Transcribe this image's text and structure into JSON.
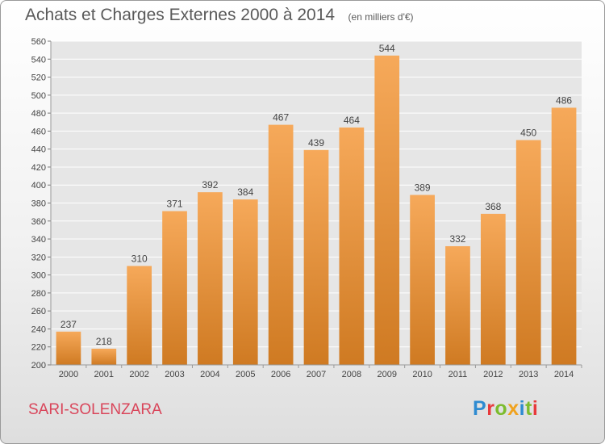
{
  "header": {
    "title": "Achats et Charges Externes 2000 à 2014",
    "subtitle": "(en milliers d'€)"
  },
  "footer": {
    "commune": "SARI-SOLENZARA",
    "logo": "Proxiti"
  },
  "colors": {
    "bar_light": "#f6a95a",
    "bar_dark": "#cf7a22",
    "title": "#5a5a5a",
    "commune": "#d9455a",
    "grid": "#ffffff",
    "plot_bg": "#e6e6e6",
    "logo": [
      "#2e8bd1",
      "#e8393b",
      "#7cbc2e",
      "#f0a21e",
      "#2e8bd1",
      "#7cbc2e",
      "#e8393b"
    ]
  },
  "chart_data": {
    "type": "bar",
    "categories": [
      "2000",
      "2001",
      "2002",
      "2003",
      "2004",
      "2005",
      "2006",
      "2007",
      "2008",
      "2009",
      "2010",
      "2011",
      "2012",
      "2013",
      "2014"
    ],
    "values": [
      237,
      218,
      310,
      371,
      392,
      384,
      467,
      439,
      464,
      544,
      389,
      332,
      368,
      450,
      486
    ],
    "title": "Achats et Charges Externes 2000 à 2014",
    "subtitle": "(en milliers d'€)",
    "xlabel": "",
    "ylabel": "",
    "ylim": [
      200,
      560
    ],
    "yticks": [
      200,
      220,
      240,
      260,
      280,
      300,
      320,
      340,
      360,
      380,
      400,
      420,
      440,
      460,
      480,
      500,
      520,
      540,
      560
    ],
    "grid": true,
    "data_labels": true
  }
}
